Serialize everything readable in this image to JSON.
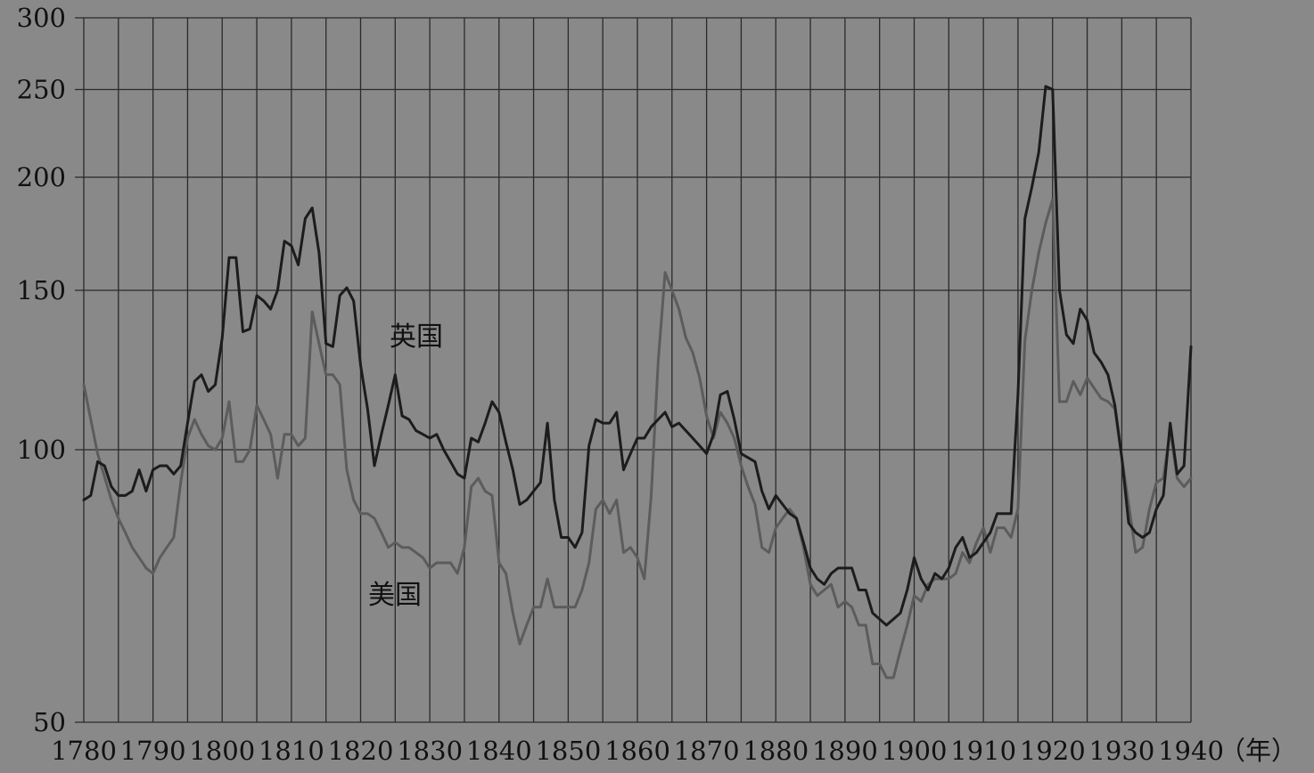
{
  "chart_data": {
    "type": "line",
    "title": "",
    "xlabel": "（年）",
    "ylabel": "",
    "x_range": [
      1780,
      1940
    ],
    "y_range": [
      50,
      300
    ],
    "y_scale": "log",
    "grid": true,
    "x_ticks": [
      1780,
      1790,
      1800,
      1810,
      1820,
      1830,
      1840,
      1850,
      1860,
      1870,
      1880,
      1890,
      1900,
      1910,
      1920,
      1930,
      1940
    ],
    "y_ticks": [
      50,
      100,
      150,
      200,
      250,
      300
    ],
    "x_tick_labels": [
      "1780",
      "1790",
      "1800",
      "1810",
      "1820",
      "1830",
      "1840",
      "1850",
      "1860",
      "1870",
      "1880",
      "1890",
      "1900",
      "1910",
      "1920",
      "1930",
      "1940"
    ],
    "y_tick_labels": [
      "50",
      "100",
      "150",
      "200",
      "250",
      "300"
    ],
    "colors": {
      "background": "#898989",
      "grid": "#2a2a2a",
      "uk": "#1c1c1c",
      "us": "#5c5c5c"
    },
    "series": [
      {
        "name": "英国",
        "points": [
          [
            1780,
            88
          ],
          [
            1781,
            89
          ],
          [
            1782,
            97
          ],
          [
            1783,
            96
          ],
          [
            1784,
            91
          ],
          [
            1785,
            89
          ],
          [
            1786,
            89
          ],
          [
            1787,
            90
          ],
          [
            1788,
            95
          ],
          [
            1789,
            90
          ],
          [
            1790,
            95
          ],
          [
            1791,
            96
          ],
          [
            1792,
            96
          ],
          [
            1793,
            94
          ],
          [
            1794,
            96
          ],
          [
            1795,
            107
          ],
          [
            1796,
            119
          ],
          [
            1797,
            121
          ],
          [
            1798,
            116
          ],
          [
            1799,
            118
          ],
          [
            1800,
            133
          ],
          [
            1801,
            163
          ],
          [
            1802,
            163
          ],
          [
            1803,
            135
          ],
          [
            1804,
            136
          ],
          [
            1805,
            148
          ],
          [
            1806,
            146
          ],
          [
            1807,
            143
          ],
          [
            1808,
            150
          ],
          [
            1809,
            170
          ],
          [
            1810,
            168
          ],
          [
            1811,
            160
          ],
          [
            1812,
            180
          ],
          [
            1813,
            185
          ],
          [
            1814,
            165
          ],
          [
            1815,
            131
          ],
          [
            1816,
            130
          ],
          [
            1817,
            148
          ],
          [
            1818,
            151
          ],
          [
            1819,
            146
          ],
          [
            1820,
            124
          ],
          [
            1821,
            111
          ],
          [
            1822,
            96
          ],
          [
            1823,
            104
          ],
          [
            1824,
            112
          ],
          [
            1825,
            121
          ],
          [
            1826,
            109
          ],
          [
            1827,
            108
          ],
          [
            1828,
            105
          ],
          [
            1829,
            104
          ],
          [
            1830,
            103
          ],
          [
            1831,
            104
          ],
          [
            1832,
            100
          ],
          [
            1833,
            97
          ],
          [
            1834,
            94
          ],
          [
            1835,
            93
          ],
          [
            1836,
            103
          ],
          [
            1837,
            102
          ],
          [
            1838,
            107
          ],
          [
            1839,
            113
          ],
          [
            1840,
            110
          ],
          [
            1841,
            102
          ],
          [
            1842,
            95
          ],
          [
            1843,
            87
          ],
          [
            1844,
            88
          ],
          [
            1845,
            90
          ],
          [
            1846,
            92
          ],
          [
            1847,
            107
          ],
          [
            1848,
            88
          ],
          [
            1849,
            80
          ],
          [
            1850,
            80
          ],
          [
            1851,
            78
          ],
          [
            1852,
            81
          ],
          [
            1853,
            101
          ],
          [
            1854,
            108
          ],
          [
            1855,
            107
          ],
          [
            1856,
            107
          ],
          [
            1857,
            110
          ],
          [
            1858,
            95
          ],
          [
            1859,
            99
          ],
          [
            1860,
            103
          ],
          [
            1861,
            103
          ],
          [
            1862,
            106
          ],
          [
            1863,
            108
          ],
          [
            1864,
            110
          ],
          [
            1865,
            106
          ],
          [
            1866,
            107
          ],
          [
            1867,
            105
          ],
          [
            1868,
            103
          ],
          [
            1869,
            101
          ],
          [
            1870,
            99
          ],
          [
            1871,
            104
          ],
          [
            1872,
            115
          ],
          [
            1873,
            116
          ],
          [
            1874,
            108
          ],
          [
            1875,
            99
          ],
          [
            1876,
            98
          ],
          [
            1877,
            97
          ],
          [
            1878,
            90
          ],
          [
            1879,
            86
          ],
          [
            1880,
            89
          ],
          [
            1881,
            87
          ],
          [
            1882,
            85
          ],
          [
            1883,
            84
          ],
          [
            1884,
            79
          ],
          [
            1885,
            74
          ],
          [
            1886,
            72
          ],
          [
            1887,
            71
          ],
          [
            1888,
            73
          ],
          [
            1889,
            74
          ],
          [
            1890,
            74
          ],
          [
            1891,
            74
          ],
          [
            1892,
            70
          ],
          [
            1893,
            70
          ],
          [
            1894,
            66
          ],
          [
            1895,
            65
          ],
          [
            1896,
            64
          ],
          [
            1897,
            65
          ],
          [
            1898,
            66
          ],
          [
            1899,
            70
          ],
          [
            1900,
            76
          ],
          [
            1901,
            72
          ],
          [
            1902,
            70
          ],
          [
            1903,
            73
          ],
          [
            1904,
            72
          ],
          [
            1905,
            74
          ],
          [
            1906,
            78
          ],
          [
            1907,
            80
          ],
          [
            1908,
            76
          ],
          [
            1909,
            77
          ],
          [
            1910,
            79
          ],
          [
            1911,
            81
          ],
          [
            1912,
            85
          ],
          [
            1913,
            85
          ],
          [
            1914,
            85
          ],
          [
            1915,
            115
          ],
          [
            1916,
            180
          ],
          [
            1917,
            195
          ],
          [
            1918,
            213
          ],
          [
            1919,
            252
          ],
          [
            1920,
            250
          ],
          [
            1921,
            150
          ],
          [
            1922,
            134
          ],
          [
            1923,
            131
          ],
          [
            1924,
            143
          ],
          [
            1925,
            139
          ],
          [
            1926,
            128
          ],
          [
            1927,
            125
          ],
          [
            1928,
            121
          ],
          [
            1929,
            112
          ],
          [
            1930,
            98
          ],
          [
            1931,
            83
          ],
          [
            1932,
            81
          ],
          [
            1933,
            80
          ],
          [
            1934,
            81
          ],
          [
            1935,
            86
          ],
          [
            1936,
            89
          ],
          [
            1937,
            107
          ],
          [
            1938,
            94
          ],
          [
            1939,
            96
          ],
          [
            1940,
            130
          ]
        ]
      },
      {
        "name": "美国",
        "points": [
          [
            1780,
            118
          ],
          [
            1782,
            99
          ],
          [
            1784,
            88
          ],
          [
            1785,
            84
          ],
          [
            1786,
            81
          ],
          [
            1787,
            78
          ],
          [
            1788,
            76
          ],
          [
            1789,
            74
          ],
          [
            1790,
            73
          ],
          [
            1791,
            76
          ],
          [
            1792,
            78
          ],
          [
            1793,
            80
          ],
          [
            1794,
            92
          ],
          [
            1795,
            103
          ],
          [
            1796,
            108
          ],
          [
            1797,
            104
          ],
          [
            1798,
            101
          ],
          [
            1799,
            100
          ],
          [
            1800,
            103
          ],
          [
            1801,
            113
          ],
          [
            1802,
            97
          ],
          [
            1803,
            97
          ],
          [
            1804,
            100
          ],
          [
            1805,
            112
          ],
          [
            1806,
            108
          ],
          [
            1807,
            104
          ],
          [
            1808,
            93
          ],
          [
            1809,
            104
          ],
          [
            1810,
            104
          ],
          [
            1811,
            101
          ],
          [
            1812,
            103
          ],
          [
            1813,
            142
          ],
          [
            1814,
            131
          ],
          [
            1815,
            121
          ],
          [
            1816,
            121
          ],
          [
            1817,
            118
          ],
          [
            1818,
            95
          ],
          [
            1819,
            88
          ],
          [
            1820,
            85
          ],
          [
            1821,
            85
          ],
          [
            1822,
            84
          ],
          [
            1823,
            81
          ],
          [
            1824,
            78
          ],
          [
            1825,
            79
          ],
          [
            1826,
            78
          ],
          [
            1827,
            78
          ],
          [
            1828,
            77
          ],
          [
            1829,
            76
          ],
          [
            1830,
            74
          ],
          [
            1831,
            75
          ],
          [
            1832,
            75
          ],
          [
            1833,
            75
          ],
          [
            1834,
            73
          ],
          [
            1835,
            78
          ],
          [
            1836,
            91
          ],
          [
            1837,
            93
          ],
          [
            1838,
            90
          ],
          [
            1839,
            89
          ],
          [
            1840,
            75
          ],
          [
            1841,
            73
          ],
          [
            1842,
            66
          ],
          [
            1843,
            61
          ],
          [
            1844,
            64
          ],
          [
            1845,
            67
          ],
          [
            1846,
            67
          ],
          [
            1847,
            72
          ],
          [
            1848,
            67
          ],
          [
            1849,
            67
          ],
          [
            1850,
            67
          ],
          [
            1851,
            67
          ],
          [
            1852,
            70
          ],
          [
            1853,
            75
          ],
          [
            1854,
            86
          ],
          [
            1855,
            88
          ],
          [
            1856,
            85
          ],
          [
            1857,
            88
          ],
          [
            1858,
            77
          ],
          [
            1859,
            78
          ],
          [
            1860,
            76
          ],
          [
            1861,
            72
          ],
          [
            1862,
            89
          ],
          [
            1863,
            125
          ],
          [
            1864,
            157
          ],
          [
            1865,
            150
          ],
          [
            1866,
            143
          ],
          [
            1867,
            133
          ],
          [
            1868,
            128
          ],
          [
            1869,
            120
          ],
          [
            1870,
            109
          ],
          [
            1871,
            103
          ],
          [
            1872,
            110
          ],
          [
            1873,
            107
          ],
          [
            1874,
            103
          ],
          [
            1875,
            96
          ],
          [
            1876,
            91
          ],
          [
            1877,
            87
          ],
          [
            1878,
            78
          ],
          [
            1879,
            77
          ],
          [
            1880,
            82
          ],
          [
            1881,
            84
          ],
          [
            1882,
            86
          ],
          [
            1883,
            84
          ],
          [
            1884,
            78
          ],
          [
            1885,
            71
          ],
          [
            1886,
            69
          ],
          [
            1887,
            70
          ],
          [
            1888,
            71
          ],
          [
            1889,
            67
          ],
          [
            1890,
            68
          ],
          [
            1891,
            67
          ],
          [
            1892,
            64
          ],
          [
            1893,
            64
          ],
          [
            1894,
            58
          ],
          [
            1895,
            58
          ],
          [
            1896,
            56
          ],
          [
            1897,
            56
          ],
          [
            1898,
            60
          ],
          [
            1899,
            64
          ],
          [
            1900,
            69
          ],
          [
            1901,
            68
          ],
          [
            1902,
            71
          ],
          [
            1903,
            72
          ],
          [
            1904,
            72
          ],
          [
            1905,
            72
          ],
          [
            1906,
            73
          ],
          [
            1907,
            77
          ],
          [
            1908,
            75
          ],
          [
            1909,
            79
          ],
          [
            1910,
            82
          ],
          [
            1911,
            77
          ],
          [
            1912,
            82
          ],
          [
            1913,
            82
          ],
          [
            1914,
            80
          ],
          [
            1915,
            86
          ],
          [
            1916,
            132
          ],
          [
            1917,
            150
          ],
          [
            1918,
            165
          ],
          [
            1919,
            178
          ],
          [
            1920,
            189
          ],
          [
            1921,
            113
          ],
          [
            1922,
            113
          ],
          [
            1923,
            119
          ],
          [
            1924,
            115
          ],
          [
            1925,
            120
          ],
          [
            1926,
            117
          ],
          [
            1927,
            114
          ],
          [
            1928,
            113
          ],
          [
            1929,
            111
          ],
          [
            1930,
            98
          ],
          [
            1931,
            87
          ],
          [
            1932,
            77
          ],
          [
            1933,
            78
          ],
          [
            1934,
            86
          ],
          [
            1935,
            92
          ],
          [
            1936,
            93
          ],
          [
            1937,
            105
          ],
          [
            1938,
            93
          ],
          [
            1939,
            91
          ],
          [
            1940,
            93
          ]
        ]
      }
    ]
  }
}
